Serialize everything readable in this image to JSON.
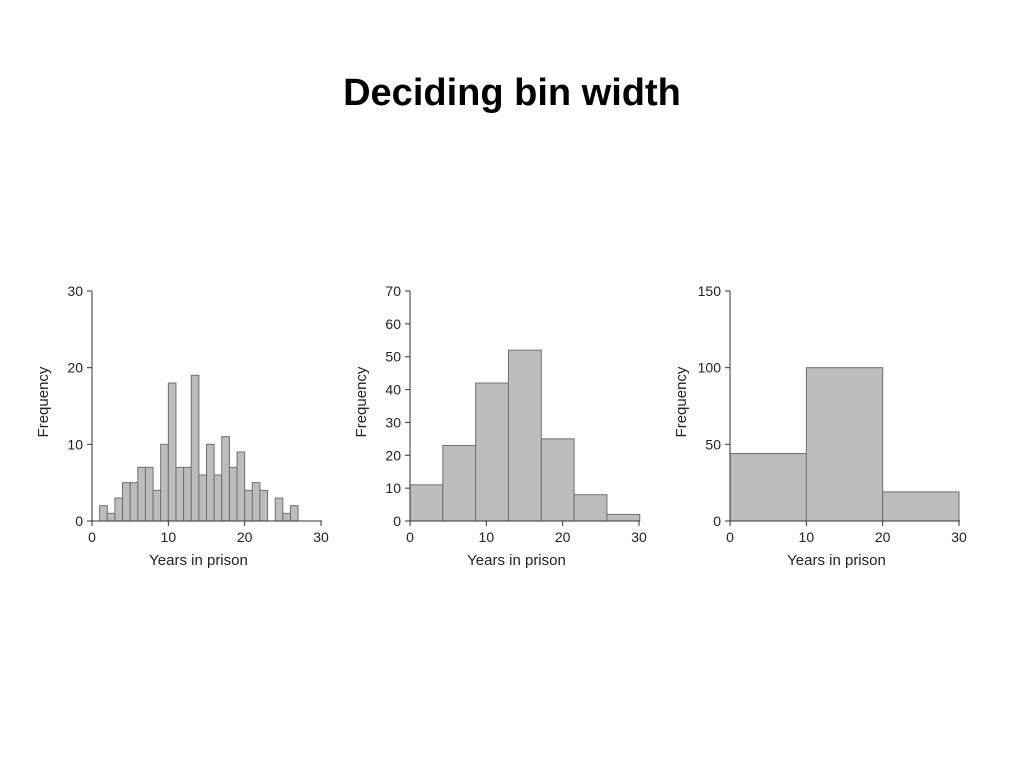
{
  "slide": {
    "title": "Deciding bin width"
  },
  "chart_data": [
    {
      "type": "bar",
      "xlabel": "Years in prison",
      "ylabel": "Frequency",
      "xlim": [
        0,
        30
      ],
      "ylim": [
        0,
        30
      ],
      "xticks": [
        "0",
        "10",
        "20",
        "30"
      ],
      "yticks": [
        "0",
        "10",
        "20",
        "30"
      ],
      "bin_width": 1,
      "bins": [
        {
          "start": 1,
          "end": 2,
          "value": 2
        },
        {
          "start": 2,
          "end": 3,
          "value": 1
        },
        {
          "start": 3,
          "end": 4,
          "value": 3
        },
        {
          "start": 4,
          "end": 5,
          "value": 5
        },
        {
          "start": 5,
          "end": 6,
          "value": 5
        },
        {
          "start": 6,
          "end": 7,
          "value": 7
        },
        {
          "start": 7,
          "end": 8,
          "value": 7
        },
        {
          "start": 8,
          "end": 9,
          "value": 4
        },
        {
          "start": 9,
          "end": 10,
          "value": 10
        },
        {
          "start": 10,
          "end": 11,
          "value": 18
        },
        {
          "start": 11,
          "end": 12,
          "value": 7
        },
        {
          "start": 12,
          "end": 13,
          "value": 7
        },
        {
          "start": 13,
          "end": 14,
          "value": 19
        },
        {
          "start": 14,
          "end": 15,
          "value": 6
        },
        {
          "start": 15,
          "end": 16,
          "value": 10
        },
        {
          "start": 16,
          "end": 17,
          "value": 6
        },
        {
          "start": 17,
          "end": 18,
          "value": 11
        },
        {
          "start": 18,
          "end": 19,
          "value": 7
        },
        {
          "start": 19,
          "end": 20,
          "value": 9
        },
        {
          "start": 20,
          "end": 21,
          "value": 4
        },
        {
          "start": 21,
          "end": 22,
          "value": 5
        },
        {
          "start": 22,
          "end": 23,
          "value": 4
        },
        {
          "start": 24,
          "end": 25,
          "value": 3
        },
        {
          "start": 25,
          "end": 26,
          "value": 1
        },
        {
          "start": 26,
          "end": 27,
          "value": 2
        }
      ],
      "bar_color": "#bdbdbd",
      "edge_color": "#707070"
    },
    {
      "type": "bar",
      "xlabel": "Years in prison",
      "ylabel": "Frequency",
      "xlim": [
        0,
        30
      ],
      "ylim": [
        0,
        70
      ],
      "xticks": [
        "0",
        "10",
        "20",
        "30"
      ],
      "yticks": [
        "0",
        "10",
        "20",
        "30",
        "40",
        "50",
        "60",
        "70"
      ],
      "bin_width": 4.3,
      "bins": [
        {
          "start": 0,
          "end": 4.3,
          "value": 11
        },
        {
          "start": 4.3,
          "end": 8.6,
          "value": 23
        },
        {
          "start": 8.6,
          "end": 12.9,
          "value": 42
        },
        {
          "start": 12.9,
          "end": 17.2,
          "value": 52
        },
        {
          "start": 17.2,
          "end": 21.5,
          "value": 25
        },
        {
          "start": 21.5,
          "end": 25.8,
          "value": 8
        },
        {
          "start": 25.8,
          "end": 30.1,
          "value": 2
        }
      ],
      "bar_color": "#bdbdbd",
      "edge_color": "#707070"
    },
    {
      "type": "bar",
      "xlabel": "Years in prison",
      "ylabel": "Frequency",
      "xlim": [
        0,
        30
      ],
      "ylim": [
        0,
        150
      ],
      "xticks": [
        "0",
        "10",
        "20",
        "30"
      ],
      "yticks": [
        "0",
        "50",
        "100",
        "150"
      ],
      "bin_width": 10,
      "bins": [
        {
          "start": 0,
          "end": 10,
          "value": 44
        },
        {
          "start": 10,
          "end": 20,
          "value": 100
        },
        {
          "start": 20,
          "end": 30,
          "value": 19
        }
      ],
      "bar_color": "#bdbdbd",
      "edge_color": "#707070"
    }
  ]
}
